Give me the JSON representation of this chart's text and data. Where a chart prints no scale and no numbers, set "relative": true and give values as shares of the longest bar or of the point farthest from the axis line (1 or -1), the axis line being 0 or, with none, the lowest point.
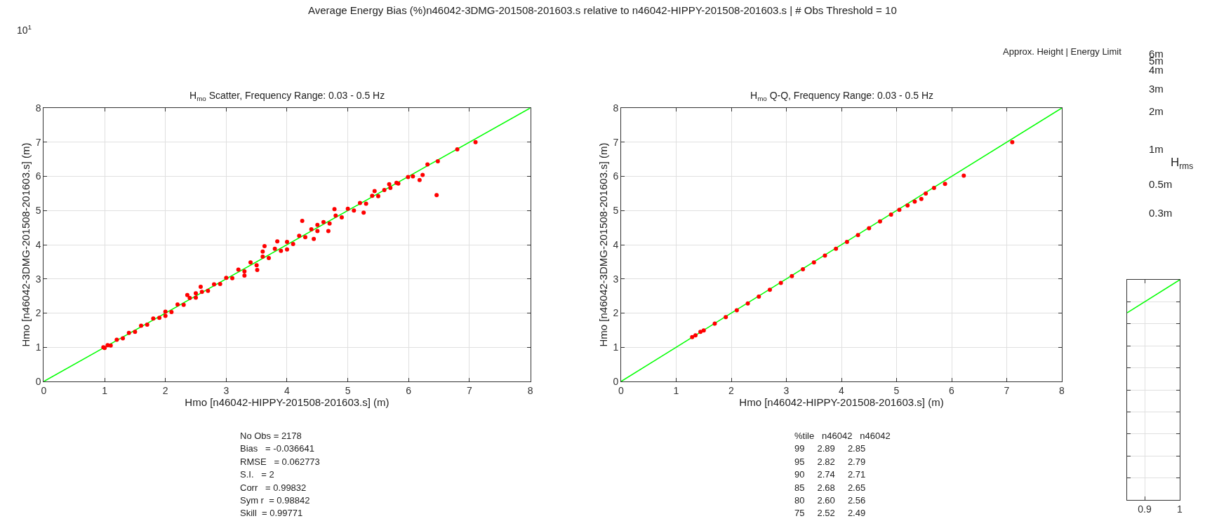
{
  "chart_data": [
    {
      "type": "scatter",
      "title": "H$_{mo}$ Scatter, Frequency Range: 0.03 - 0.5 Hz",
      "xlabel": "Hmo [n46042-HIPPY-201508-201603.s] (m)",
      "ylabel": "Hmo [n46042-3DMG-201508-201603.s] (m)",
      "xlim": [
        0,
        8
      ],
      "ylim": [
        0,
        8
      ],
      "xticks": [
        0,
        1,
        2,
        3,
        4,
        5,
        6,
        7,
        8
      ],
      "yticks": [
        0,
        1,
        2,
        3,
        4,
        5,
        6,
        7,
        8
      ],
      "grid": true,
      "marker": "circle",
      "annotations": [
        "No Obs = 2178",
        "Bias   = -0.036641",
        "RMSE   = 0.062773",
        "S.I.   = 2",
        "Corr   = 0.99832",
        "Sym r  = 0.98842",
        "Skill  = 0.99771"
      ],
      "series": [
        {
          "type": "scatter",
          "color": "#ff0000",
          "x": [
            0.98,
            1.0,
            1.05,
            1.1,
            1.2,
            1.3,
            1.4,
            1.5,
            1.6,
            1.7,
            1.8,
            1.9,
            2.0,
            2.0,
            2.1,
            2.2,
            2.3,
            2.36,
            2.4,
            2.5,
            2.5,
            2.58,
            2.6,
            2.7,
            2.8,
            2.9,
            3.0,
            3.1,
            3.2,
            3.3,
            3.3,
            3.4,
            3.5,
            3.51,
            3.6,
            3.6,
            3.63,
            3.7,
            3.8,
            3.84,
            3.9,
            4.0,
            4.0,
            4.1,
            4.2,
            4.25,
            4.3,
            4.4,
            4.44,
            4.5,
            4.5,
            4.6,
            4.68,
            4.7,
            4.78,
            4.8,
            4.9,
            5.0,
            5.1,
            5.2,
            5.26,
            5.3,
            5.4,
            5.44,
            5.5,
            5.6,
            5.68,
            5.7,
            5.8,
            5.83,
            5.99,
            6.07,
            6.18,
            6.23,
            6.31,
            6.46,
            6.48,
            6.8,
            7.1
          ],
          "values": [
            1.0,
            0.98,
            1.06,
            1.05,
            1.22,
            1.26,
            1.42,
            1.45,
            1.63,
            1.66,
            1.84,
            1.86,
            2.04,
            1.92,
            2.03,
            2.25,
            2.24,
            2.53,
            2.44,
            2.45,
            2.58,
            2.77,
            2.62,
            2.65,
            2.84,
            2.85,
            3.03,
            3.02,
            3.27,
            3.22,
            3.1,
            3.48,
            3.4,
            3.26,
            3.65,
            3.8,
            3.96,
            3.61,
            3.88,
            4.1,
            3.82,
            4.08,
            3.86,
            4.02,
            4.26,
            4.7,
            4.22,
            4.45,
            4.17,
            4.4,
            4.58,
            4.66,
            4.4,
            4.62,
            5.04,
            4.85,
            4.8,
            5.05,
            5.0,
            5.22,
            4.94,
            5.2,
            5.43,
            5.57,
            5.42,
            5.6,
            5.77,
            5.66,
            5.81,
            5.79,
            5.98,
            6.0,
            5.89,
            6.04,
            6.35,
            5.45,
            6.44,
            6.79,
            7.0
          ]
        },
        {
          "type": "line",
          "color": "#00ff00",
          "x": [
            0,
            8
          ],
          "values": [
            0,
            8
          ],
          "marker": "none"
        }
      ]
    },
    {
      "type": "scatter",
      "title": "H$_{mo}$ Q-Q, Frequency Range: 0.03 - 0.5 Hz",
      "xlabel": "Hmo [n46042-HIPPY-201508-201603.s] (m)",
      "ylabel": "Hmo [n46042-3DMG-201508-201603.s] (m)",
      "xlim": [
        0,
        8
      ],
      "ylim": [
        0,
        8
      ],
      "xticks": [
        0,
        1,
        2,
        3,
        4,
        5,
        6,
        7,
        8
      ],
      "yticks": [
        0,
        1,
        2,
        3,
        4,
        5,
        6,
        7,
        8
      ],
      "grid": true,
      "marker": "circle",
      "annotations": [
        "%tile   n46042   n46042",
        "99     2.89     2.85",
        "95     2.82     2.79",
        "90     2.74     2.71",
        "85     2.68     2.65",
        "80     2.60     2.56",
        "75     2.52     2.49"
      ],
      "series": [
        {
          "type": "scatter",
          "color": "#ff0000",
          "x": [
            1.29,
            1.35,
            1.44,
            1.5,
            1.7,
            1.9,
            2.1,
            2.3,
            2.5,
            2.7,
            2.9,
            3.1,
            3.3,
            3.5,
            3.7,
            3.9,
            4.1,
            4.3,
            4.5,
            4.7,
            4.9,
            5.05,
            5.2,
            5.33,
            5.45,
            5.53,
            5.68,
            5.88,
            6.22,
            7.1
          ],
          "values": [
            1.3,
            1.35,
            1.45,
            1.49,
            1.69,
            1.88,
            2.08,
            2.28,
            2.48,
            2.68,
            2.88,
            3.08,
            3.28,
            3.48,
            3.68,
            3.88,
            4.08,
            4.28,
            4.48,
            4.68,
            4.88,
            5.02,
            5.15,
            5.26,
            5.34,
            5.5,
            5.66,
            5.78,
            6.02,
            7.0
          ]
        },
        {
          "type": "line",
          "color": "#00ff00",
          "x": [
            0,
            8
          ],
          "values": [
            0,
            8
          ],
          "marker": "none"
        }
      ]
    },
    {
      "type": "other",
      "title": "Average Energy Bias (%)n46042-3DMG-201508-201603.s relative to n46042-HIPPY-201508-201603.s | # Obs Threshold = 10",
      "annotations": [
        "10$^{1}$",
        "Approx. Height | Energy Limit",
        "6m",
        "5m",
        "4m",
        "3m",
        "2m",
        "1m",
        "0.5m",
        "0.3m",
        "H$_{rms}$"
      ]
    },
    {
      "type": "line",
      "relative": true,
      "x": [
        0.85,
        1
      ],
      "xlim": [
        0.85,
        1
      ],
      "xticks": [
        0.9,
        1
      ],
      "tick_labels": "x",
      "grid": true,
      "series": [
        {
          "color": "#00ff00",
          "values": [
            0.85,
            1
          ]
        }
      ]
    }
  ]
}
